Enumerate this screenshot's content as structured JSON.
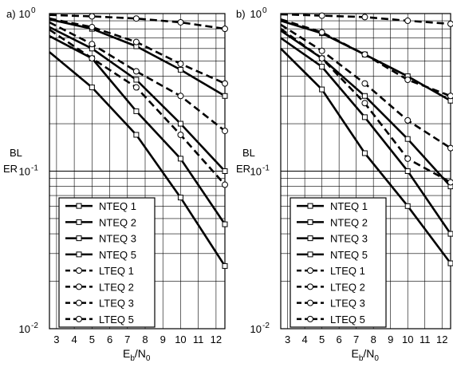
{
  "chart_data": [
    {
      "type": "line",
      "panel_label": "a)",
      "y_label_line1": "BL",
      "y_label_line2": "ER",
      "x_label_main": "E",
      "x_label_sub1": "b",
      "x_label_mid": "/N",
      "x_label_sub2": "0",
      "x_ticks": [
        "3",
        "4",
        "5",
        "6",
        "7",
        "8",
        "9",
        "10",
        "11",
        "12"
      ],
      "y_ticks": [
        {
          "base": "10",
          "exp": "0",
          "value": 1
        },
        {
          "base": "10",
          "exp": "-1",
          "value": 0.1
        },
        {
          "base": "10",
          "exp": "-2",
          "value": 0.01
        }
      ],
      "xlim": [
        2.6,
        12.5
      ],
      "ylim": [
        0.01,
        1
      ],
      "yscale": "log",
      "grid": true,
      "legend_position": "lower-left",
      "series": [
        {
          "name": "NTEQ 1",
          "marker": "square",
          "dash": "solid",
          "x": [
            2.6,
            5,
            7.5,
            10,
            12.5
          ],
          "y": [
            0.92,
            0.8,
            0.62,
            0.44,
            0.3
          ]
        },
        {
          "name": "NTEQ 2",
          "marker": "square",
          "dash": "solid",
          "x": [
            2.6,
            5,
            7.5,
            10,
            12.5
          ],
          "y": [
            0.82,
            0.6,
            0.38,
            0.2,
            0.1
          ]
        },
        {
          "name": "NTEQ 3",
          "marker": "square",
          "dash": "solid",
          "x": [
            2.6,
            5,
            7.5,
            10,
            12.5
          ],
          "y": [
            0.72,
            0.52,
            0.24,
            0.12,
            0.046
          ]
        },
        {
          "name": "NTEQ 5",
          "marker": "square",
          "dash": "solid",
          "x": [
            2.6,
            5,
            7.5,
            10,
            12.5
          ],
          "y": [
            0.57,
            0.34,
            0.17,
            0.068,
            0.025
          ]
        },
        {
          "name": "LTEQ 1",
          "marker": "circle",
          "dash": "dashed",
          "x": [
            2.6,
            5,
            7.5,
            10,
            12.5
          ],
          "y": [
            0.98,
            0.96,
            0.93,
            0.88,
            0.8
          ]
        },
        {
          "name": "LTEQ 2",
          "marker": "circle",
          "dash": "dashed",
          "x": [
            2.6,
            5,
            7.5,
            10,
            12.5
          ],
          "y": [
            0.93,
            0.82,
            0.66,
            0.48,
            0.36
          ]
        },
        {
          "name": "LTEQ 3",
          "marker": "circle",
          "dash": "dashed",
          "x": [
            2.6,
            5,
            7.5,
            10,
            12.5
          ],
          "y": [
            0.88,
            0.64,
            0.43,
            0.3,
            0.18
          ]
        },
        {
          "name": "LTEQ 5",
          "marker": "circle",
          "dash": "dashed",
          "x": [
            2.6,
            5,
            7.5,
            10,
            12.5
          ],
          "y": [
            0.79,
            0.52,
            0.34,
            0.17,
            0.082
          ]
        }
      ]
    },
    {
      "type": "line",
      "panel_label": "b)",
      "y_label_line1": "BL",
      "y_label_line2": "ER",
      "x_label_main": "E",
      "x_label_sub1": "b",
      "x_label_mid": "/N",
      "x_label_sub2": "0",
      "x_ticks": [
        "3",
        "4",
        "5",
        "6",
        "7",
        "8",
        "9",
        "10",
        "11",
        "12"
      ],
      "y_ticks": [
        {
          "base": "10",
          "exp": "0",
          "value": 1
        },
        {
          "base": "10",
          "exp": "-1",
          "value": 0.1
        },
        {
          "base": "10",
          "exp": "-2",
          "value": 0.01
        }
      ],
      "xlim": [
        2.6,
        12.5
      ],
      "ylim": [
        0.01,
        1
      ],
      "yscale": "log",
      "grid": true,
      "legend_position": "lower-left",
      "series": [
        {
          "name": "NTEQ 1",
          "marker": "square",
          "dash": "solid",
          "x": [
            2.6,
            5,
            7.5,
            10,
            12.5
          ],
          "y": [
            0.9,
            0.75,
            0.55,
            0.4,
            0.28
          ]
        },
        {
          "name": "NTEQ 2",
          "marker": "square",
          "dash": "solid",
          "x": [
            2.6,
            5,
            7.5,
            10,
            12.5
          ],
          "y": [
            0.78,
            0.52,
            0.3,
            0.16,
            0.08
          ]
        },
        {
          "name": "NTEQ 3",
          "marker": "square",
          "dash": "solid",
          "x": [
            2.6,
            5,
            7.5,
            10,
            12.5
          ],
          "y": [
            0.7,
            0.46,
            0.22,
            0.1,
            0.04
          ]
        },
        {
          "name": "NTEQ 5",
          "marker": "square",
          "dash": "solid",
          "x": [
            2.6,
            5,
            7.5,
            10,
            12.5
          ],
          "y": [
            0.6,
            0.33,
            0.13,
            0.06,
            0.026
          ]
        },
        {
          "name": "LTEQ 1",
          "marker": "circle",
          "dash": "dashed",
          "x": [
            2.6,
            5,
            7.5,
            10,
            12.5
          ],
          "y": [
            0.99,
            0.97,
            0.95,
            0.9,
            0.86
          ]
        },
        {
          "name": "LTEQ 2",
          "marker": "circle",
          "dash": "dashed",
          "x": [
            2.6,
            5,
            7.5,
            10,
            12.5
          ],
          "y": [
            0.92,
            0.76,
            0.55,
            0.38,
            0.3
          ]
        },
        {
          "name": "LTEQ 3",
          "marker": "circle",
          "dash": "dashed",
          "x": [
            2.6,
            5,
            7.5,
            10,
            12.5
          ],
          "y": [
            0.85,
            0.58,
            0.36,
            0.21,
            0.14
          ]
        },
        {
          "name": "LTEQ 5",
          "marker": "circle",
          "dash": "dashed",
          "x": [
            2.6,
            5,
            7.5,
            10,
            12.5
          ],
          "y": [
            0.8,
            0.52,
            0.27,
            0.12,
            0.085
          ]
        }
      ]
    }
  ]
}
